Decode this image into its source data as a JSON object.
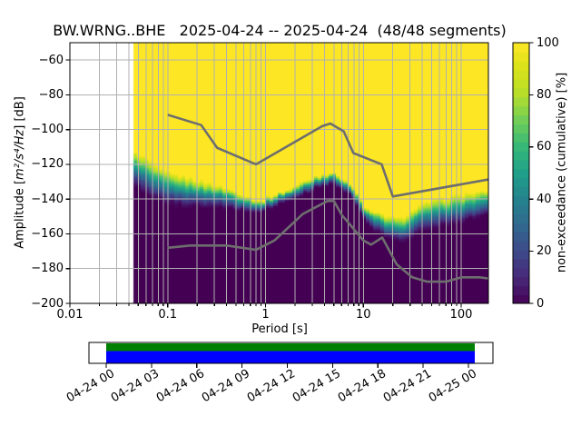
{
  "title": "BW.WRNG..BHE   2025-04-24 -- 2025-04-24  (48/48 segments)",
  "station": "BW.WRNG..BHE",
  "date_range": "2025-04-24 -- 2025-04-24",
  "segments": "48/48 segments",
  "axes": {
    "xlabel": "Period [s]",
    "ylabel_prefix": "Amplitude [",
    "ylabel_math": "m²/s⁴/Hz",
    "ylabel_suffix": "] [dB]",
    "x_tick_labels": [
      "0.01",
      "0.1",
      "1",
      "10",
      "100"
    ],
    "x_tick_values": [
      0.01,
      0.1,
      1,
      10,
      100
    ],
    "y_tick_labels": [
      "−60",
      "−80",
      "−100",
      "−120",
      "−140",
      "−160",
      "−180",
      "−200"
    ],
    "y_tick_values": [
      -60,
      -80,
      -100,
      -120,
      -140,
      -160,
      -180,
      -200
    ],
    "xlim": [
      0.01,
      190
    ],
    "ylim": [
      -200,
      -50
    ],
    "xscale": "log",
    "grid": true
  },
  "colorbar": {
    "label": "non-exceedance (cumulative) [%]",
    "tick_labels": [
      "0",
      "20",
      "40",
      "60",
      "80",
      "100"
    ],
    "tick_values": [
      0,
      20,
      40,
      60,
      80,
      100
    ],
    "range": [
      0,
      100
    ],
    "steps": 29
  },
  "timeline": {
    "tick_labels": [
      "04-24 00",
      "04-24 03",
      "04-24 06",
      "04-24 09",
      "04-24 12",
      "04-24 15",
      "04-24 18",
      "04-24 21",
      "04-25 00"
    ],
    "coverage_color": "#008000",
    "segments_color": "#0000ff"
  },
  "colors": {
    "background": "#ffffff",
    "grid": "#b0b0b0",
    "noise_model": "#6e6e6e",
    "spine": "#000000",
    "viridis": [
      [
        0,
        "#440154"
      ],
      [
        0.1,
        "#482878"
      ],
      [
        0.2,
        "#3e4989"
      ],
      [
        0.3,
        "#31688e"
      ],
      [
        0.4,
        "#26828e"
      ],
      [
        0.5,
        "#1f9e89"
      ],
      [
        0.6,
        "#35b779"
      ],
      [
        0.7,
        "#6dcd59"
      ],
      [
        0.8,
        "#b4de2c"
      ],
      [
        0.9,
        "#d8e219"
      ],
      [
        1,
        "#fde725"
      ]
    ]
  },
  "chart_data": {
    "type": "heatmap",
    "title": "BW.WRNG..BHE   2025-04-24 -- 2025-04-24  (48/48 segments)",
    "xlabel": "Period [s]",
    "ylabel": "Amplitude [m²/s⁴/Hz] [dB]",
    "xscale": "log",
    "xlim": [
      0.01,
      190
    ],
    "ylim": [
      -200,
      -50
    ],
    "value_label": "non-exceedance (cumulative) [%]",
    "value_range": [
      0,
      100
    ],
    "data_period_range": [
      0.045,
      190
    ],
    "mesh": {
      "octave_step": 0.125,
      "db_step": 1
    },
    "cumulative_band": {
      "periods": [
        0.045,
        0.06,
        0.08,
        0.11,
        0.16,
        0.25,
        0.4,
        0.6,
        0.9,
        1.2,
        1.7,
        2.4,
        3.3,
        4.6,
        5.6,
        7.0,
        8.5,
        10.5,
        13,
        16,
        20,
        24,
        29,
        35,
        50,
        75,
        115,
        176,
        190
      ],
      "db_at_0_percent": [
        -132.5,
        -137,
        -141,
        -143.5,
        -144.5,
        -145,
        -145.5,
        -146.5,
        -147.5,
        -144.5,
        -141.5,
        -138,
        -134,
        -131.5,
        -132.5,
        -137,
        -143,
        -153,
        -158,
        -161,
        -163.5,
        -165,
        -163.5,
        -160,
        -157.5,
        -155,
        -152.5,
        -150,
        -149.5
      ],
      "db_at_100_percent": [
        -112.5,
        -116.5,
        -122,
        -125.5,
        -127.5,
        -130.5,
        -133.5,
        -137.5,
        -141.5,
        -138,
        -134.5,
        -130.5,
        -127,
        -124.8,
        -126,
        -130,
        -136.5,
        -145,
        -147.5,
        -149,
        -150.5,
        -151.5,
        -148.5,
        -144.5,
        -141,
        -139,
        -137,
        -135.5,
        -135
      ]
    },
    "noise_models": {
      "nhnm": {
        "periods": [
          0.1,
          0.22,
          0.32,
          0.8,
          3.8,
          4.6,
          6.3,
          7.9,
          15.4,
          20,
          190
        ],
        "db": [
          -91.5,
          -97.4,
          -110.5,
          -120,
          -98,
          -96.5,
          -101,
          -113.5,
          -120,
          -138.5,
          -128.7
        ]
      },
      "nlnm": {
        "periods": [
          0.1,
          0.17,
          0.4,
          0.8,
          1.24,
          2.4,
          4.3,
          5,
          6,
          10,
          12,
          15.6,
          21.9,
          31.6,
          45,
          70,
          101,
          154,
          190
        ],
        "db": [
          -168,
          -166.7,
          -166.7,
          -169.2,
          -163.7,
          -148.6,
          -141.1,
          -141.1,
          -149,
          -163.8,
          -166.2,
          -162.1,
          -177.5,
          -185,
          -187.5,
          -187.5,
          -185,
          -185,
          -185.7
        ]
      }
    },
    "timeline_coverage": {
      "start": "04-24 00",
      "end": "04-25 00",
      "filled": true
    }
  }
}
